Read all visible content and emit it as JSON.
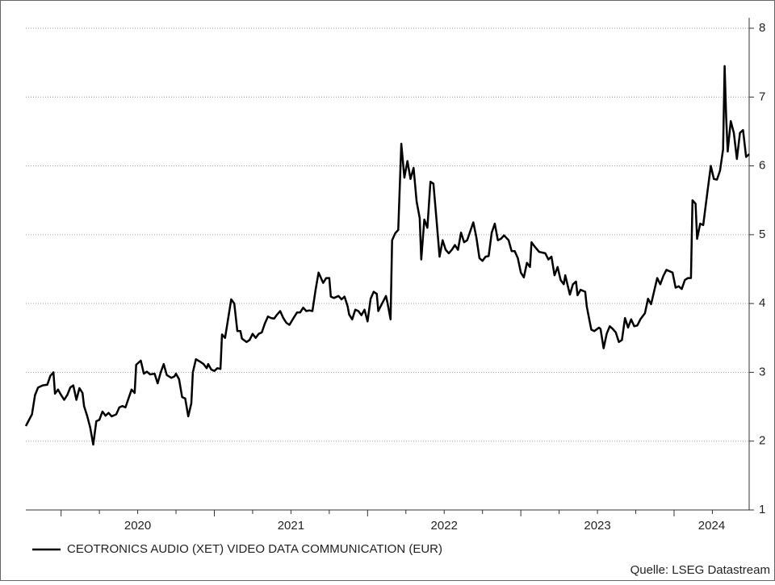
{
  "chart_data": {
    "type": "line",
    "series": [
      {
        "name": "CEOTRONICS AUDIO (XET) VIDEO DATA COMMUNICATION (EUR)",
        "color": "#000000",
        "x": [
          2019.77,
          2019.81,
          2019.83,
          2019.85,
          2019.88,
          2019.91,
          2019.93,
          2019.95,
          2019.96,
          2019.98,
          2020.0,
          2020.02,
          2020.04,
          2020.06,
          2020.08,
          2020.1,
          2020.12,
          2020.14,
          2020.15,
          2020.17,
          2020.19,
          2020.21,
          2020.23,
          2020.25,
          2020.27,
          2020.29,
          2020.31,
          2020.33,
          2020.36,
          2020.38,
          2020.4,
          2020.42,
          2020.44,
          2020.46,
          2020.48,
          2020.49,
          2020.52,
          2020.54,
          2020.56,
          2020.58,
          2020.61,
          2020.63,
          2020.65,
          2020.67,
          2020.69,
          2020.72,
          2020.74,
          2020.75,
          2020.77,
          2020.79,
          2020.81,
          2020.83,
          2020.85,
          2020.86,
          2020.88,
          2020.91,
          2020.93,
          2020.95,
          2020.96,
          2020.98,
          2021.0,
          2021.02,
          2021.04,
          2021.05,
          2021.07,
          2021.09,
          2021.11,
          2021.13,
          2021.15,
          2021.17,
          2021.18,
          2021.21,
          2021.23,
          2021.25,
          2021.27,
          2021.29,
          2021.31,
          2021.33,
          2021.35,
          2021.37,
          2021.39,
          2021.41,
          2021.43,
          2021.45,
          2021.47,
          2021.49,
          2021.52,
          2021.54,
          2021.56,
          2021.58,
          2021.6,
          2021.62,
          2021.64,
          2021.66,
          2021.68,
          2021.71,
          2021.73,
          2021.75,
          2021.76,
          2021.78,
          2021.81,
          2021.83,
          2021.85,
          2021.87,
          2021.88,
          2021.9,
          2021.92,
          2021.94,
          2021.96,
          2021.98,
          2022.0,
          2022.02,
          2022.04,
          2022.06,
          2022.07,
          2022.09,
          2022.12,
          2022.13,
          2022.15,
          2022.16,
          2022.18,
          2022.2,
          2022.22,
          2022.24,
          2022.26,
          2022.28,
          2022.3,
          2022.32,
          2022.34,
          2022.35,
          2022.37,
          2022.39,
          2022.41,
          2022.43,
          2022.45,
          2022.47,
          2022.49,
          2022.51,
          2022.53,
          2022.55,
          2022.57,
          2022.59,
          2022.61,
          2022.63,
          2022.65,
          2022.67,
          2022.69,
          2022.71,
          2022.73,
          2022.75,
          2022.77,
          2022.79,
          2022.81,
          2022.83,
          2022.85,
          2022.87,
          2022.89,
          2022.92,
          2022.94,
          2022.96,
          2022.98,
          2023.0,
          2023.02,
          2023.04,
          2023.06,
          2023.07,
          2023.09,
          2023.12,
          2023.14,
          2023.16,
          2023.18,
          2023.2,
          2023.22,
          2023.24,
          2023.26,
          2023.28,
          2023.29,
          2023.32,
          2023.34,
          2023.36,
          2023.37,
          2023.39,
          2023.42,
          2023.43,
          2023.45,
          2023.46,
          2023.48,
          2023.51,
          2023.52,
          2023.54,
          2023.56,
          2023.58,
          2023.6,
          2023.62,
          2023.64,
          2023.66,
          2023.68,
          2023.7,
          2023.72,
          2023.74,
          2023.76,
          2023.78,
          2023.81,
          2023.83,
          2023.85,
          2023.87,
          2023.89,
          2023.91,
          2023.93,
          2023.95,
          2023.97,
          2023.99,
          2024.01,
          2024.03,
          2024.05,
          2024.07,
          2024.09,
          2024.11,
          2024.12,
          2024.14,
          2024.15,
          2024.17,
          2024.19,
          2024.22,
          2024.24,
          2024.26,
          2024.28,
          2024.3,
          2024.32,
          2024.33,
          2024.34,
          2024.35,
          2024.37,
          2024.39,
          2024.41,
          2024.43,
          2024.45,
          2024.47,
          2024.49
        ],
        "values": [
          2.22,
          2.39,
          2.67,
          2.78,
          2.81,
          2.82,
          2.95,
          3.0,
          2.69,
          2.75,
          2.67,
          2.6,
          2.67,
          2.78,
          2.81,
          2.6,
          2.77,
          2.7,
          2.51,
          2.37,
          2.2,
          1.95,
          2.29,
          2.31,
          2.43,
          2.37,
          2.41,
          2.36,
          2.39,
          2.49,
          2.51,
          2.49,
          2.62,
          2.75,
          2.7,
          3.11,
          3.17,
          2.98,
          3.01,
          2.97,
          2.98,
          2.84,
          3.0,
          3.12,
          2.96,
          2.92,
          2.94,
          2.98,
          2.9,
          2.64,
          2.62,
          2.36,
          2.55,
          3.0,
          3.19,
          3.15,
          3.12,
          3.06,
          3.12,
          3.04,
          3.02,
          3.06,
          3.05,
          3.55,
          3.5,
          3.78,
          4.06,
          4.0,
          3.6,
          3.6,
          3.49,
          3.44,
          3.47,
          3.56,
          3.5,
          3.56,
          3.58,
          3.71,
          3.81,
          3.79,
          3.78,
          3.84,
          3.89,
          3.79,
          3.72,
          3.69,
          3.8,
          3.87,
          3.87,
          3.94,
          3.89,
          3.9,
          3.89,
          4.19,
          4.45,
          4.3,
          4.37,
          4.37,
          4.1,
          4.08,
          4.11,
          4.06,
          4.1,
          3.96,
          3.84,
          3.77,
          3.91,
          3.89,
          3.83,
          3.91,
          3.74,
          4.07,
          4.17,
          4.14,
          3.89,
          3.98,
          4.11,
          4.01,
          3.77,
          4.92,
          5.02,
          5.07,
          6.32,
          5.83,
          6.07,
          5.81,
          5.97,
          5.48,
          5.24,
          4.64,
          5.22,
          5.1,
          5.77,
          5.74,
          5.22,
          4.68,
          4.92,
          4.78,
          4.73,
          4.78,
          4.85,
          4.78,
          5.03,
          4.89,
          4.92,
          5.05,
          5.18,
          4.96,
          4.66,
          4.62,
          4.68,
          4.69,
          5.03,
          5.16,
          4.92,
          4.94,
          4.99,
          4.92,
          4.76,
          4.76,
          4.66,
          4.45,
          4.38,
          4.59,
          4.53,
          4.89,
          4.83,
          4.75,
          4.74,
          4.73,
          4.64,
          4.68,
          4.41,
          4.53,
          4.34,
          4.28,
          4.41,
          4.13,
          4.28,
          4.32,
          4.12,
          4.2,
          4.17,
          3.96,
          3.73,
          3.62,
          3.6,
          3.65,
          3.63,
          3.35,
          3.56,
          3.67,
          3.63,
          3.58,
          3.44,
          3.47,
          3.79,
          3.65,
          3.77,
          3.67,
          3.68,
          3.77,
          3.86,
          4.07,
          3.99,
          4.18,
          4.37,
          4.28,
          4.4,
          4.49,
          4.47,
          4.45,
          4.23,
          4.25,
          4.21,
          4.34,
          4.37,
          4.37,
          5.5,
          5.45,
          4.94,
          5.16,
          5.14,
          5.66,
          6.0,
          5.81,
          5.8,
          5.93,
          6.24,
          7.45,
          6.71,
          6.21,
          6.65,
          6.48,
          6.1,
          6.48,
          6.52,
          6.13,
          6.17
        ]
      }
    ],
    "xlim": [
      2019.77,
      2024.49
    ],
    "xticks": [
      2020,
      2020.25,
      2020.5,
      2020.75,
      2021,
      2021.25,
      2021.5,
      2021.75,
      2022,
      2022.25,
      2022.5,
      2022.75,
      2023,
      2023.25,
      2023.5,
      2023.75,
      2024,
      2024.25
    ],
    "year_labels": [
      2020,
      2021,
      2022,
      2023,
      2024
    ],
    "ylim": [
      1,
      8
    ],
    "yticks": [
      1,
      2,
      3,
      4,
      5,
      6,
      7,
      8
    ],
    "grid": true,
    "source": "Quelle: LSEG Datastream"
  }
}
